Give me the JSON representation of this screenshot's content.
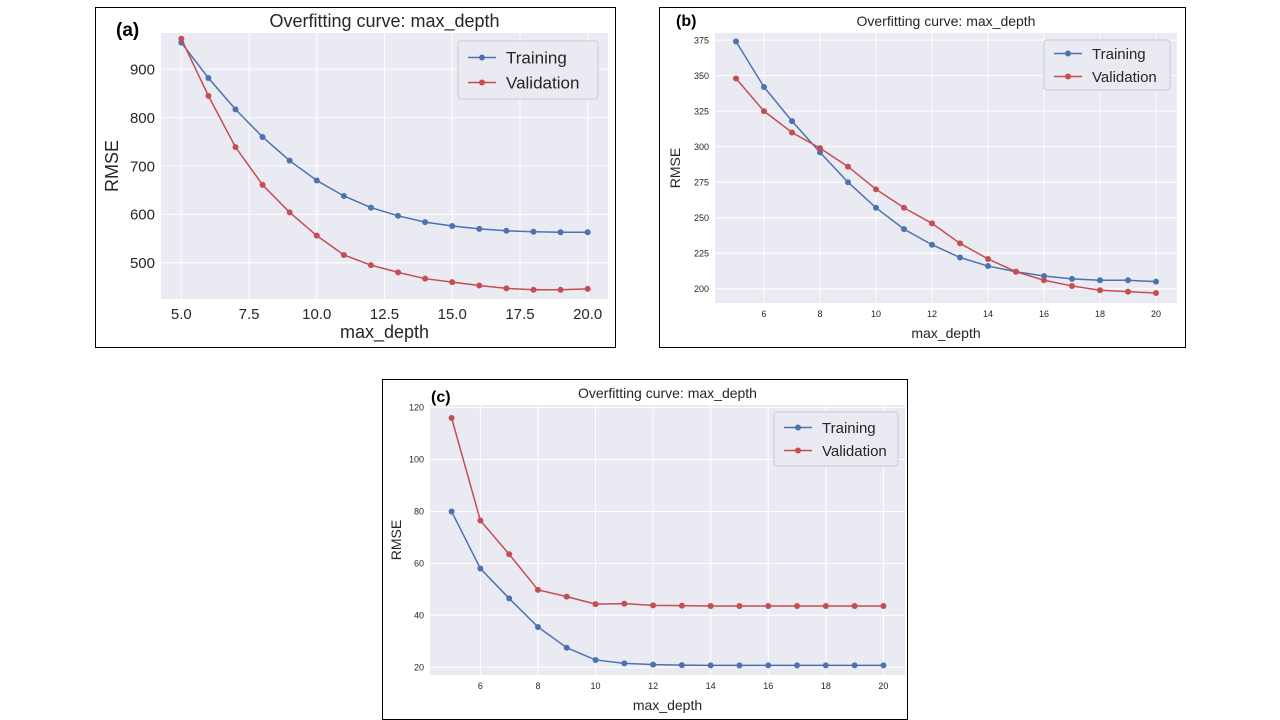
{
  "colors": {
    "training": "#4c72b0",
    "validation": "#c44e52",
    "plot_bg": "#eaeaf2",
    "grid": "#ffffff"
  },
  "chart_data": [
    {
      "panel": "(a)",
      "type": "line",
      "title": "Overfitting curve: max_depth",
      "xlabel": "max_depth",
      "ylabel": "RMSE",
      "grid": true,
      "legend_position": "top-right",
      "xlim": [
        4.25,
        20.75
      ],
      "ylim": [
        425,
        975
      ],
      "xticks": [
        5,
        7.5,
        10,
        12.5,
        15,
        17.5,
        20
      ],
      "xtick_labels": [
        "5.0",
        "7.5",
        "10.0",
        "12.5",
        "15.0",
        "17.5",
        "20.0"
      ],
      "yticks": [
        500,
        600,
        700,
        800,
        900
      ],
      "ytick_labels": [
        "500",
        "600",
        "700",
        "800",
        "900"
      ],
      "x": [
        5,
        6,
        7,
        8,
        9,
        10,
        11,
        12,
        13,
        14,
        15,
        16,
        17,
        18,
        19,
        20
      ],
      "series": [
        {
          "name": "Training",
          "values": [
            955,
            882,
            817,
            760,
            711,
            670,
            638,
            614,
            597,
            584,
            576,
            570,
            566,
            564,
            563,
            563
          ]
        },
        {
          "name": "Validation",
          "values": [
            963,
            845,
            739,
            661,
            604,
            556,
            516,
            495,
            480,
            467,
            460,
            453,
            447,
            444,
            444,
            446
          ]
        }
      ]
    },
    {
      "panel": "(b)",
      "type": "line",
      "title": "Overfitting curve: max_depth",
      "xlabel": "max_depth",
      "ylabel": "RMSE",
      "grid": true,
      "legend_position": "top-right",
      "xlim": [
        4.25,
        20.75
      ],
      "ylim": [
        190,
        380
      ],
      "xticks": [
        6,
        8,
        10,
        12,
        14,
        16,
        18,
        20
      ],
      "xtick_labels": [
        "6",
        "8",
        "10",
        "12",
        "14",
        "16",
        "18",
        "20"
      ],
      "yticks": [
        200,
        225,
        250,
        275,
        300,
        325,
        350,
        375
      ],
      "ytick_labels": [
        "200",
        "225",
        "250",
        "275",
        "300",
        "325",
        "350",
        "375"
      ],
      "x": [
        5,
        6,
        7,
        8,
        9,
        10,
        11,
        12,
        13,
        14,
        15,
        16,
        17,
        18,
        19,
        20
      ],
      "series": [
        {
          "name": "Training",
          "values": [
            374,
            342,
            318,
            296,
            275,
            257,
            242,
            231,
            222,
            216,
            212,
            209,
            207,
            206,
            206,
            205
          ]
        },
        {
          "name": "Validation",
          "values": [
            348,
            325,
            310,
            299,
            286,
            270,
            257,
            246,
            232,
            221,
            212,
            206,
            202,
            199,
            198,
            197
          ]
        }
      ]
    },
    {
      "panel": "(c)",
      "type": "line",
      "title": "Overfitting curve: max_depth",
      "xlabel": "max_depth",
      "ylabel": "RMSE",
      "grid": true,
      "legend_position": "top-right",
      "xlim": [
        4.25,
        20.75
      ],
      "ylim": [
        17,
        121
      ],
      "xticks": [
        6,
        8,
        10,
        12,
        14,
        16,
        18,
        20
      ],
      "xtick_labels": [
        "6",
        "8",
        "10",
        "12",
        "14",
        "16",
        "18",
        "20"
      ],
      "yticks": [
        20,
        40,
        60,
        80,
        100,
        120
      ],
      "ytick_labels": [
        "20",
        "40",
        "60",
        "80",
        "100",
        "120"
      ],
      "x": [
        5,
        6,
        7,
        8,
        9,
        10,
        11,
        12,
        13,
        14,
        15,
        16,
        17,
        18,
        19,
        20
      ],
      "series": [
        {
          "name": "Training",
          "values": [
            80,
            58,
            46.5,
            35.5,
            27.5,
            22.8,
            21.5,
            21,
            20.8,
            20.7,
            20.7,
            20.7,
            20.7,
            20.7,
            20.7,
            20.7
          ]
        },
        {
          "name": "Validation",
          "values": [
            116,
            76.5,
            63.5,
            49.8,
            47.2,
            44.3,
            44.5,
            43.8,
            43.7,
            43.6,
            43.6,
            43.6,
            43.6,
            43.6,
            43.6,
            43.6
          ]
        }
      ]
    }
  ]
}
